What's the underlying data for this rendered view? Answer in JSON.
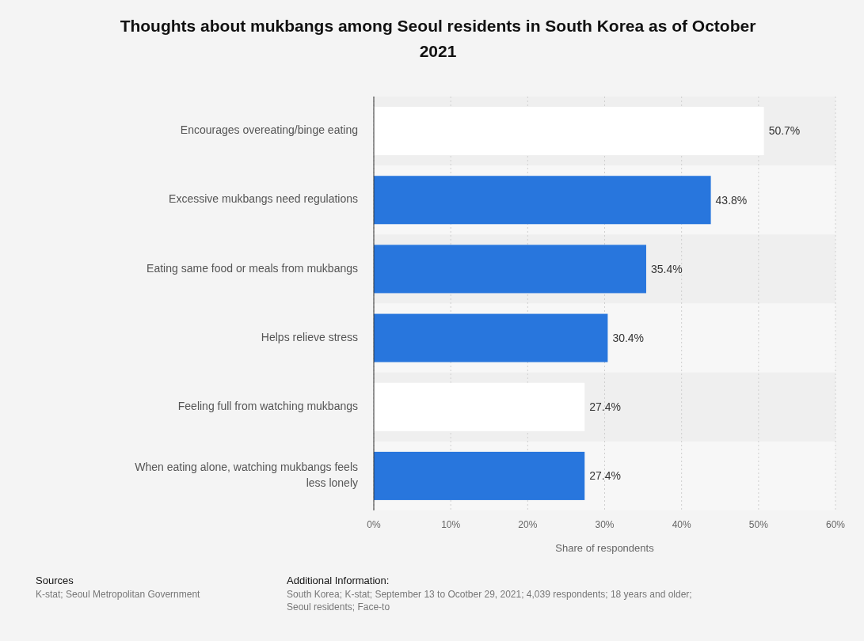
{
  "chart_data": {
    "type": "bar",
    "orientation": "horizontal",
    "title": "Thoughts about mukbangs among Seoul residents in South Korea as of October 2021",
    "categories": [
      "Encourages overeating/binge eating",
      "Excessive mukbangs need regulations",
      "Eating same food or meals from mukbangs",
      "Helps relieve stress",
      "Feeling full from watching mukbangs",
      "When eating alone, watching mukbangs feels less lonely"
    ],
    "values": [
      50.7,
      43.8,
      35.4,
      30.4,
      27.4,
      27.4
    ],
    "value_labels": [
      "50.7%",
      "43.8%",
      "35.4%",
      "30.4%",
      "27.4%",
      "27.4%"
    ],
    "colors": [
      "#ffffff",
      "#2876dd",
      "#2876dd",
      "#2876dd",
      "#ffffff",
      "#2876dd"
    ],
    "xlabel": "Share of respondents",
    "xlim": [
      0,
      60
    ],
    "xticks": [
      {
        "value": 0,
        "label": "0%"
      },
      {
        "value": 10,
        "label": "10%"
      },
      {
        "value": 20,
        "label": "20%"
      },
      {
        "value": 30,
        "label": "30%"
      },
      {
        "value": 40,
        "label": "40%"
      },
      {
        "value": 50,
        "label": "50%"
      },
      {
        "value": 60,
        "label": "60%"
      }
    ],
    "grid": "x",
    "annotations": [
      "Sources",
      "K-stat; Seoul Metropolitan Government",
      "Additional Information:",
      "South Korea; K-stat; September 13 to Ocotber 29, 2021; 4,039 respondents; 18 years and older; Seoul residents; Face-to"
    ]
  }
}
